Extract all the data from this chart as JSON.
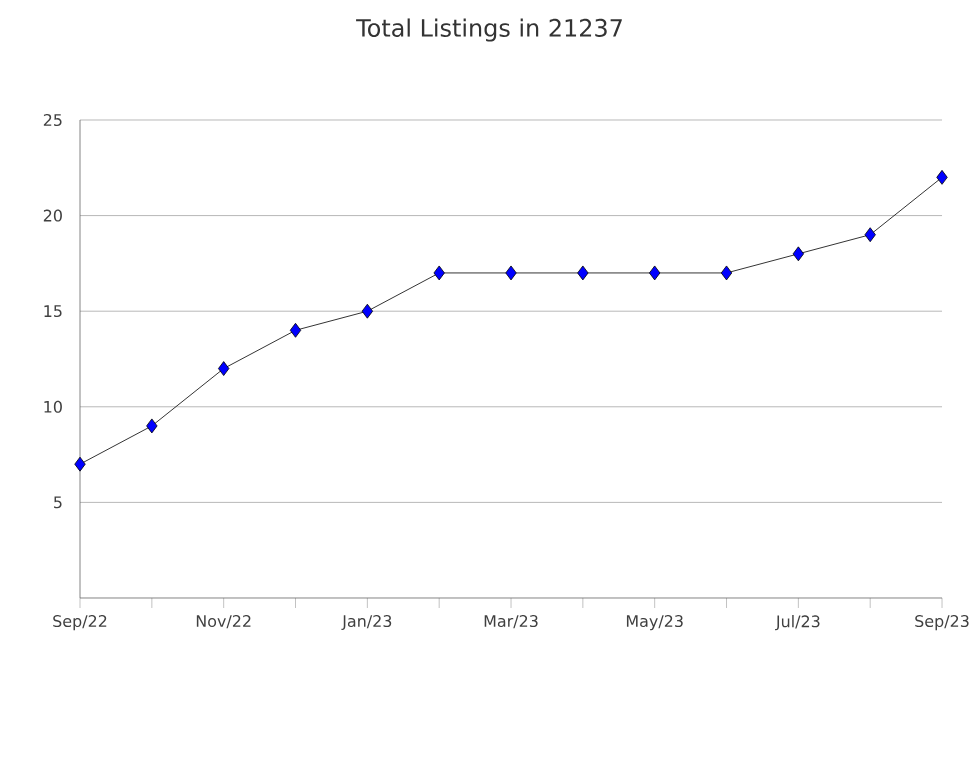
{
  "chart_data": {
    "type": "line",
    "title": "Total Listings in 21237",
    "categories": [
      "Sep/22",
      null,
      "Nov/22",
      null,
      "Jan/23",
      null,
      "Mar/23",
      null,
      "May/23",
      null,
      "Jul/23",
      null,
      "Sep/23"
    ],
    "series": [
      {
        "color": "#0000ff",
        "values": [
          7,
          9,
          12,
          14,
          15,
          17,
          17,
          17,
          17,
          17,
          18,
          19,
          22
        ]
      }
    ],
    "ylim": [
      0,
      25
    ],
    "yticks": [
      5,
      10,
      15,
      20,
      25
    ],
    "grid": "y",
    "marker": "diamond",
    "line_style": "solid"
  }
}
